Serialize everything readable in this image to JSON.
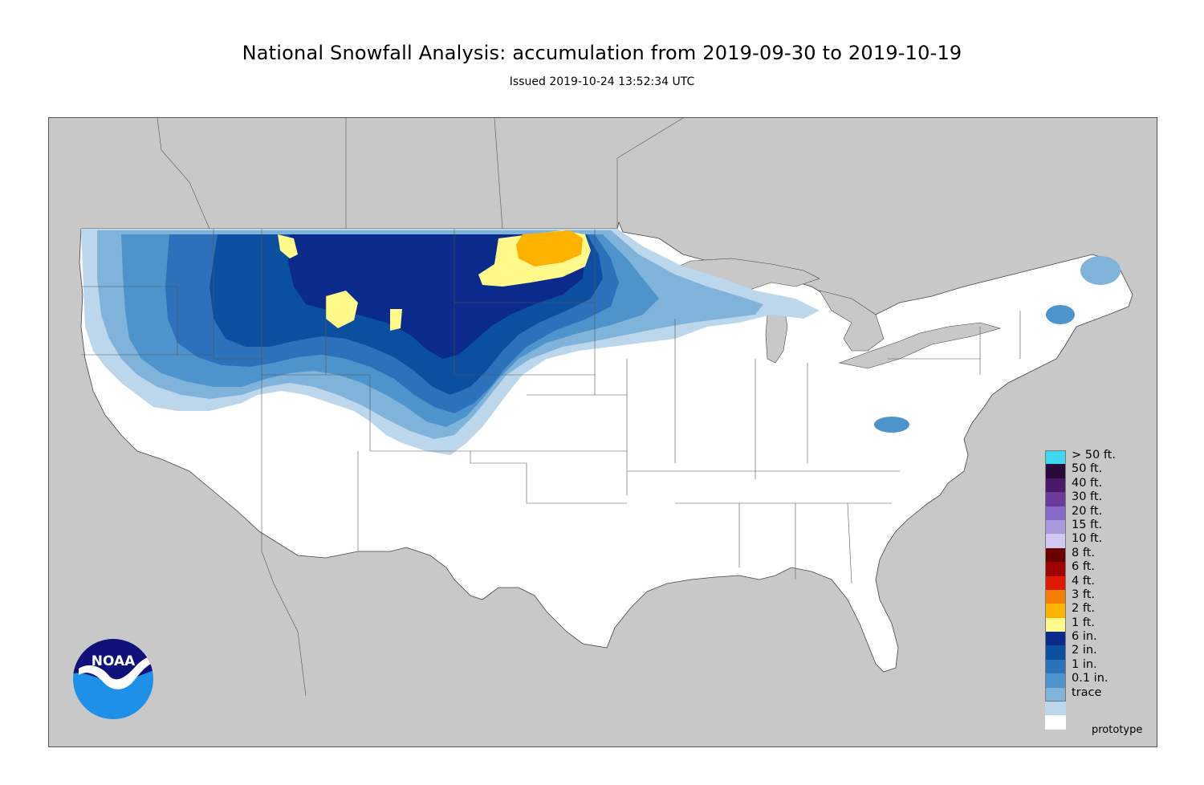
{
  "title": "National Snowfall Analysis: accumulation from 2019-09-30 to 2019-10-19",
  "subtitle": "Issued 2019-10-24 13:52:34 UTC",
  "watermark": "prototype",
  "logo": {
    "text": "NOAA",
    "colors": {
      "sky": "#1e90e8",
      "night": "#10107a",
      "bird": "#ffffff"
    }
  },
  "map": {
    "colors": {
      "background_land_outside": "#c8c8c8",
      "us_land": "#ffffff",
      "water": "#c8c8c8",
      "borders": "#555555"
    }
  },
  "legend": {
    "items": [
      {
        "label": "> 50 ft.",
        "color": "#40d8f0"
      },
      {
        "label": "50 ft.",
        "color": "#2a0a3a"
      },
      {
        "label": "40 ft.",
        "color": "#4a1a6a"
      },
      {
        "label": "30 ft.",
        "color": "#6b3a9a"
      },
      {
        "label": "20 ft.",
        "color": "#8a6ac8"
      },
      {
        "label": "15 ft.",
        "color": "#a998dc"
      },
      {
        "label": "10 ft.",
        "color": "#d0c8f0"
      },
      {
        "label": "8 ft.",
        "color": "#6b0000"
      },
      {
        "label": "6 ft.",
        "color": "#a00000"
      },
      {
        "label": "4 ft.",
        "color": "#e01a00"
      },
      {
        "label": "3 ft.",
        "color": "#f57f00"
      },
      {
        "label": "2 ft.",
        "color": "#fdb200"
      },
      {
        "label": "1 ft.",
        "color": "#fffa8a"
      },
      {
        "label": "6 in.",
        "color": "#0a2a8c"
      },
      {
        "label": "2 in.",
        "color": "#0b4fa0"
      },
      {
        "label": "1 in.",
        "color": "#2b72ba"
      },
      {
        "label": "0.1 in.",
        "color": "#4e94cc"
      },
      {
        "label": "trace",
        "color": "#7fb3da"
      },
      {
        "label": "",
        "color": "#bcd7ec"
      },
      {
        "label": "",
        "color": "#ffffff"
      }
    ]
  }
}
